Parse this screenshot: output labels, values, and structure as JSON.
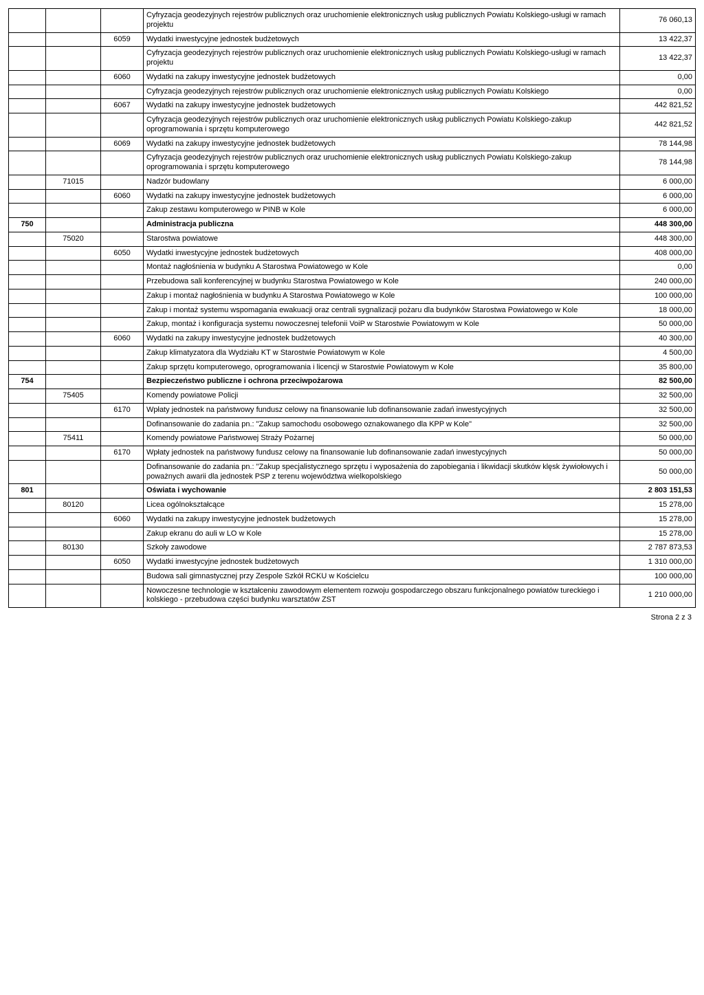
{
  "footer": "Strona 2 z 3",
  "rows": [
    {
      "c1": "",
      "c2": "",
      "c3": "",
      "c4": "Cyfryzacja geodezyjnych rejestrów publicznych oraz uruchomienie elektronicznych usług publicznych Powiatu Kolskiego-usługi w ramach projektu",
      "c5": "76 060,13"
    },
    {
      "c1": "",
      "c2": "",
      "c3": "6059",
      "c4": "Wydatki inwestycyjne jednostek budżetowych",
      "c5": "13 422,37"
    },
    {
      "c1": "",
      "c2": "",
      "c3": "",
      "c4": "Cyfryzacja geodezyjnych rejestrów publicznych oraz uruchomienie elektronicznych usług publicznych Powiatu Kolskiego-usługi w ramach projektu",
      "c5": "13 422,37"
    },
    {
      "c1": "",
      "c2": "",
      "c3": "6060",
      "c4": "Wydatki na zakupy inwestycyjne jednostek budżetowych",
      "c5": "0,00"
    },
    {
      "c1": "",
      "c2": "",
      "c3": "",
      "c4": "Cyfryzacja geodezyjnych rejestrów publicznych oraz uruchomienie elektronicznych usług publicznych Powiatu Kolskiego",
      "c5": "0,00"
    },
    {
      "c1": "",
      "c2": "",
      "c3": "6067",
      "c4": "Wydatki na zakupy inwestycyjne jednostek budżetowych",
      "c5": "442 821,52"
    },
    {
      "c1": "",
      "c2": "",
      "c3": "",
      "c4": "Cyfryzacja geodezyjnych rejestrów publicznych oraz uruchomienie elektronicznych usług publicznych Powiatu Kolskiego-zakup oprogramowania i sprzętu komputerowego",
      "c5": "442 821,52"
    },
    {
      "c1": "",
      "c2": "",
      "c3": "6069",
      "c4": "Wydatki na zakupy inwestycyjne jednostek budżetowych",
      "c5": "78 144,98"
    },
    {
      "c1": "",
      "c2": "",
      "c3": "",
      "c4": "Cyfryzacja geodezyjnych rejestrów publicznych oraz uruchomienie elektronicznych usług publicznych Powiatu Kolskiego-zakup oprogramowania i sprzętu komputerowego",
      "c5": "78 144,98"
    },
    {
      "c1": "",
      "c2": "71015",
      "c3": "",
      "c4": "Nadzór budowlany",
      "c5": "6 000,00"
    },
    {
      "c1": "",
      "c2": "",
      "c3": "6060",
      "c4": "Wydatki na zakupy inwestycyjne jednostek budżetowych",
      "c5": "6 000,00"
    },
    {
      "c1": "",
      "c2": "",
      "c3": "",
      "c4": "Zakup zestawu komputerowego w PINB w Kole",
      "c5": "6 000,00"
    },
    {
      "c1": "750",
      "c2": "",
      "c3": "",
      "c4": "Administracja publiczna",
      "c5": "448 300,00",
      "bold": true
    },
    {
      "c1": "",
      "c2": "75020",
      "c3": "",
      "c4": "Starostwa powiatowe",
      "c5": "448 300,00"
    },
    {
      "c1": "",
      "c2": "",
      "c3": "6050",
      "c4": "Wydatki inwestycyjne jednostek budżetowych",
      "c5": "408 000,00"
    },
    {
      "c1": "",
      "c2": "",
      "c3": "",
      "c4": "Montaż nagłośnienia w budynku A Starostwa Powiatowego w Kole",
      "c5": "0,00"
    },
    {
      "c1": "",
      "c2": "",
      "c3": "",
      "c4": "Przebudowa sali konferencyjnej w budynku Starostwa Powiatowego w Kole",
      "c5": "240 000,00"
    },
    {
      "c1": "",
      "c2": "",
      "c3": "",
      "c4": "Zakup i montaż nagłośnienia w budynku A Starostwa Powiatowego w Kole",
      "c5": "100 000,00"
    },
    {
      "c1": "",
      "c2": "",
      "c3": "",
      "c4": "Zakup i montaż systemu wspomagania ewakuacji oraz centrali sygnalizacji pożaru dla budynków Starostwa Powiatowego w Kole",
      "c5": "18 000,00"
    },
    {
      "c1": "",
      "c2": "",
      "c3": "",
      "c4": "Zakup, montaż i konfiguracja systemu nowoczesnej telefonii VoiP w Starostwie Powiatowym w Kole",
      "c5": "50 000,00"
    },
    {
      "c1": "",
      "c2": "",
      "c3": "6060",
      "c4": "Wydatki na zakupy inwestycyjne jednostek budżetowych",
      "c5": "40 300,00"
    },
    {
      "c1": "",
      "c2": "",
      "c3": "",
      "c4": "Zakup klimatyzatora dla Wydziału KT w Starostwie Powiatowym w Kole",
      "c5": "4 500,00"
    },
    {
      "c1": "",
      "c2": "",
      "c3": "",
      "c4": "Zakup sprzętu komputerowego, oprogramowania i licencji w Starostwie Powiatowym w Kole",
      "c5": "35 800,00"
    },
    {
      "c1": "754",
      "c2": "",
      "c3": "",
      "c4": "Bezpieczeństwo publiczne i ochrona przeciwpożarowa",
      "c5": "82 500,00",
      "bold": true
    },
    {
      "c1": "",
      "c2": "75405",
      "c3": "",
      "c4": "Komendy powiatowe Policji",
      "c5": "32 500,00"
    },
    {
      "c1": "",
      "c2": "",
      "c3": "6170",
      "c4": "Wpłaty jednostek na państwowy fundusz celowy na finansowanie lub dofinansowanie zadań inwestycyjnych",
      "c5": "32 500,00"
    },
    {
      "c1": "",
      "c2": "",
      "c3": "",
      "c4": "Dofinansowanie do zadania pn.: \"Zakup samochodu osobowego oznakowanego dla KPP w Kole\"",
      "c5": "32 500,00"
    },
    {
      "c1": "",
      "c2": "75411",
      "c3": "",
      "c4": "Komendy powiatowe Państwowej Straży Pożarnej",
      "c5": "50 000,00"
    },
    {
      "c1": "",
      "c2": "",
      "c3": "6170",
      "c4": "Wpłaty jednostek na państwowy fundusz celowy na finansowanie lub dofinansowanie zadań inwestycyjnych",
      "c5": "50 000,00"
    },
    {
      "c1": "",
      "c2": "",
      "c3": "",
      "c4": "Dofinansowanie do zadania pn.: \"Zakup specjalistycznego sprzętu i wyposażenia do zapobiegania i likwidacji skutków klęsk żywiołowych i poważnych awarii dla jednostek PSP z terenu województwa wielkopolskiego",
      "c5": "50 000,00"
    },
    {
      "c1": "801",
      "c2": "",
      "c3": "",
      "c4": "Oświata i wychowanie",
      "c5": "2 803 151,53",
      "bold": true
    },
    {
      "c1": "",
      "c2": "80120",
      "c3": "",
      "c4": "Licea ogólnokształcące",
      "c5": "15 278,00"
    },
    {
      "c1": "",
      "c2": "",
      "c3": "6060",
      "c4": "Wydatki na zakupy inwestycyjne jednostek budżetowych",
      "c5": "15 278,00"
    },
    {
      "c1": "",
      "c2": "",
      "c3": "",
      "c4": "Zakup ekranu do auli w LO w Kole",
      "c5": "15 278,00"
    },
    {
      "c1": "",
      "c2": "80130",
      "c3": "",
      "c4": "Szkoły zawodowe",
      "c5": "2 787 873,53"
    },
    {
      "c1": "",
      "c2": "",
      "c3": "6050",
      "c4": "Wydatki inwestycyjne jednostek budżetowych",
      "c5": "1 310 000,00"
    },
    {
      "c1": "",
      "c2": "",
      "c3": "",
      "c4": "Budowa sali gimnastycznej przy Zespole Szkół RCKU w Kościelcu",
      "c5": "100 000,00"
    },
    {
      "c1": "",
      "c2": "",
      "c3": "",
      "c4": "Nowoczesne technologie w kształceniu zawodowym elementem rozwoju gospodarczego obszaru funkcjonalnego powiatów tureckiego i kolskiego - przebudowa części budynku warsztatów ZST",
      "c5": "1 210 000,00"
    }
  ]
}
